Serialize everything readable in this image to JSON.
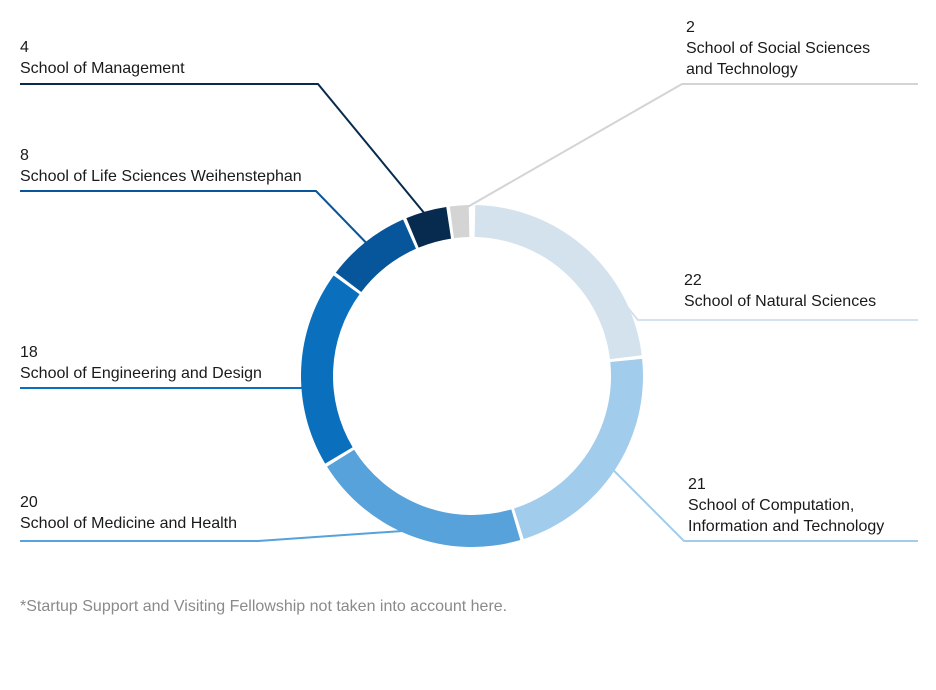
{
  "chart_data": {
    "type": "pie",
    "title": "",
    "donut": true,
    "slices": [
      {
        "label": "School of Natural Sciences",
        "value": 22,
        "color": "#d3e2ec"
      },
      {
        "label": "School of Computation,\nInformation and Technology",
        "value": 21,
        "color": "#a2ccec"
      },
      {
        "label": "School of Medicine and Health",
        "value": 20,
        "color": "#57a2da"
      },
      {
        "label": "School of Engineering and Design",
        "value": 18,
        "color": "#0a6fbd"
      },
      {
        "label": "School of Life Sciences Weihenstephan",
        "value": 8,
        "color": "#07559a"
      },
      {
        "label": "School of Management",
        "value": 4,
        "color": "#072b4e"
      },
      {
        "label": "School of Social Sciences\nand Technology",
        "value": 2,
        "color": "#d4d4d4"
      }
    ]
  },
  "footnote": "*Startup Support and Visiting Fellowship not taken into account here."
}
